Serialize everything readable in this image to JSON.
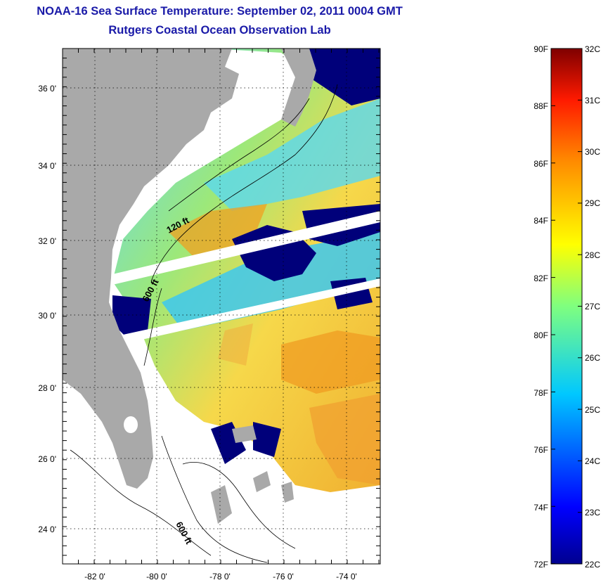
{
  "header": {
    "title": "NOAA-16 Sea Surface Temperature:  September 02, 2011 0004 GMT",
    "subtitle": "Rutgers Coastal Ocean Observation Lab"
  },
  "map": {
    "lat_labels": [
      "36 0'",
      "34 0'",
      "32 0'",
      "30 0'",
      "28 0'",
      "26 0'",
      "24 0'"
    ],
    "lon_labels": [
      "-82 0'",
      "-80 0'",
      "-78 0'",
      "-76 0'",
      "-74 0'"
    ],
    "annotations": [
      "120 ft",
      "600 ft",
      "600 ft"
    ]
  },
  "colorbar": {
    "fahrenheit_labels": [
      "90F",
      "88F",
      "86F",
      "84F",
      "82F",
      "80F",
      "78F",
      "76F",
      "74F",
      "72F"
    ],
    "celsius_labels": [
      "32C",
      "31C",
      "30C",
      "29C",
      "28C",
      "27C",
      "26C",
      "25C",
      "24C",
      "23C",
      "22C"
    ],
    "colors": {
      "low": "#00008f",
      "mid_low": "#00c8ff",
      "mid": "#ffff00",
      "mid_high": "#ff7a00",
      "high": "#7f0000"
    }
  },
  "colors": {
    "land": "#a9a9a9",
    "swath_gap": "#ffffff",
    "cloud_mask": "#00007a",
    "title_text": "#1a1aa8"
  }
}
